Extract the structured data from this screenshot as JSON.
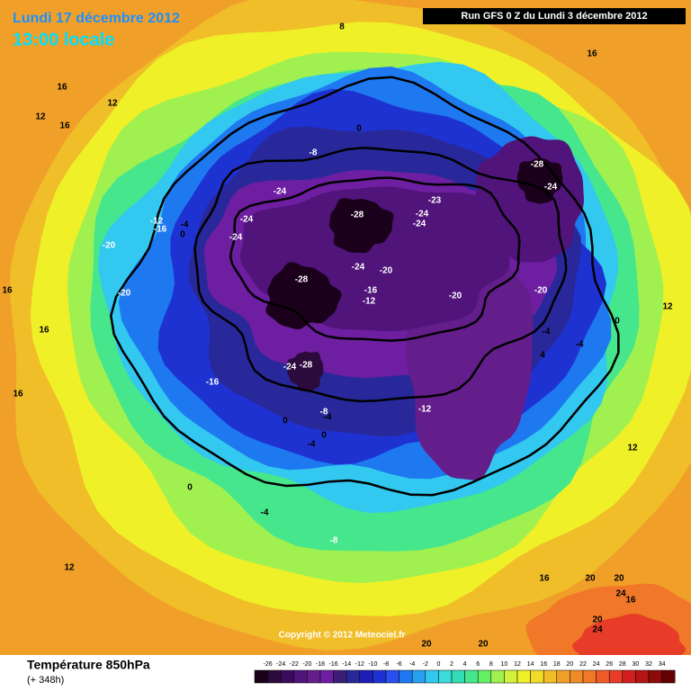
{
  "header": {
    "date": "Lundi 17 décembre 2012",
    "time": "13:00 locale",
    "run": "Run GFS 0 Z du Lundi 3 décembre 2012"
  },
  "footer": {
    "title": "Température 850hPa",
    "lead": "(+ 348h)",
    "copyright": "Copyright © 2012 Meteociel.fr"
  },
  "legend": {
    "ticks": [
      -26,
      -24,
      -22,
      -20,
      -18,
      -16,
      -14,
      -12,
      -10,
      -8,
      -6,
      -4,
      -2,
      0,
      2,
      4,
      6,
      8,
      10,
      12,
      14,
      16,
      18,
      20,
      22,
      24,
      26,
      28,
      30,
      32,
      34
    ],
    "colors": [
      "#1a001a",
      "#2d0a3c",
      "#3c0a5a",
      "#50147a",
      "#641e8c",
      "#6e1ea0",
      "#3c1e78",
      "#28289b",
      "#1e1eb4",
      "#1e32d2",
      "#2850f0",
      "#1e78f0",
      "#28a0f0",
      "#32c8f0",
      "#3cdcdc",
      "#32dcb4",
      "#46e68c",
      "#64f064",
      "#a0f050",
      "#d2f03c",
      "#f0f028",
      "#f0dc28",
      "#f0be28",
      "#f0a028",
      "#f08c28",
      "#f07828",
      "#f05a28",
      "#e63c28",
      "#d21e1e",
      "#b41414",
      "#8c0a0a",
      "#640000"
    ]
  },
  "contour_labels": [
    8,
    16,
    16,
    12,
    12,
    16,
    0,
    -8,
    -28,
    -24,
    -24,
    -23,
    -24,
    -28,
    -24,
    -12,
    -4,
    -16,
    0,
    -24,
    -24,
    -20,
    -24,
    -20,
    -28,
    16,
    -20,
    -16,
    -12,
    -20,
    -20,
    12,
    0,
    16,
    -4,
    -4,
    4,
    -24,
    -28,
    -16,
    16,
    -8,
    -12,
    0,
    -4,
    0,
    -4,
    12,
    0,
    -4,
    -8,
    12,
    16,
    20,
    20,
    24,
    16,
    20,
    24,
    20,
    20
  ]
}
